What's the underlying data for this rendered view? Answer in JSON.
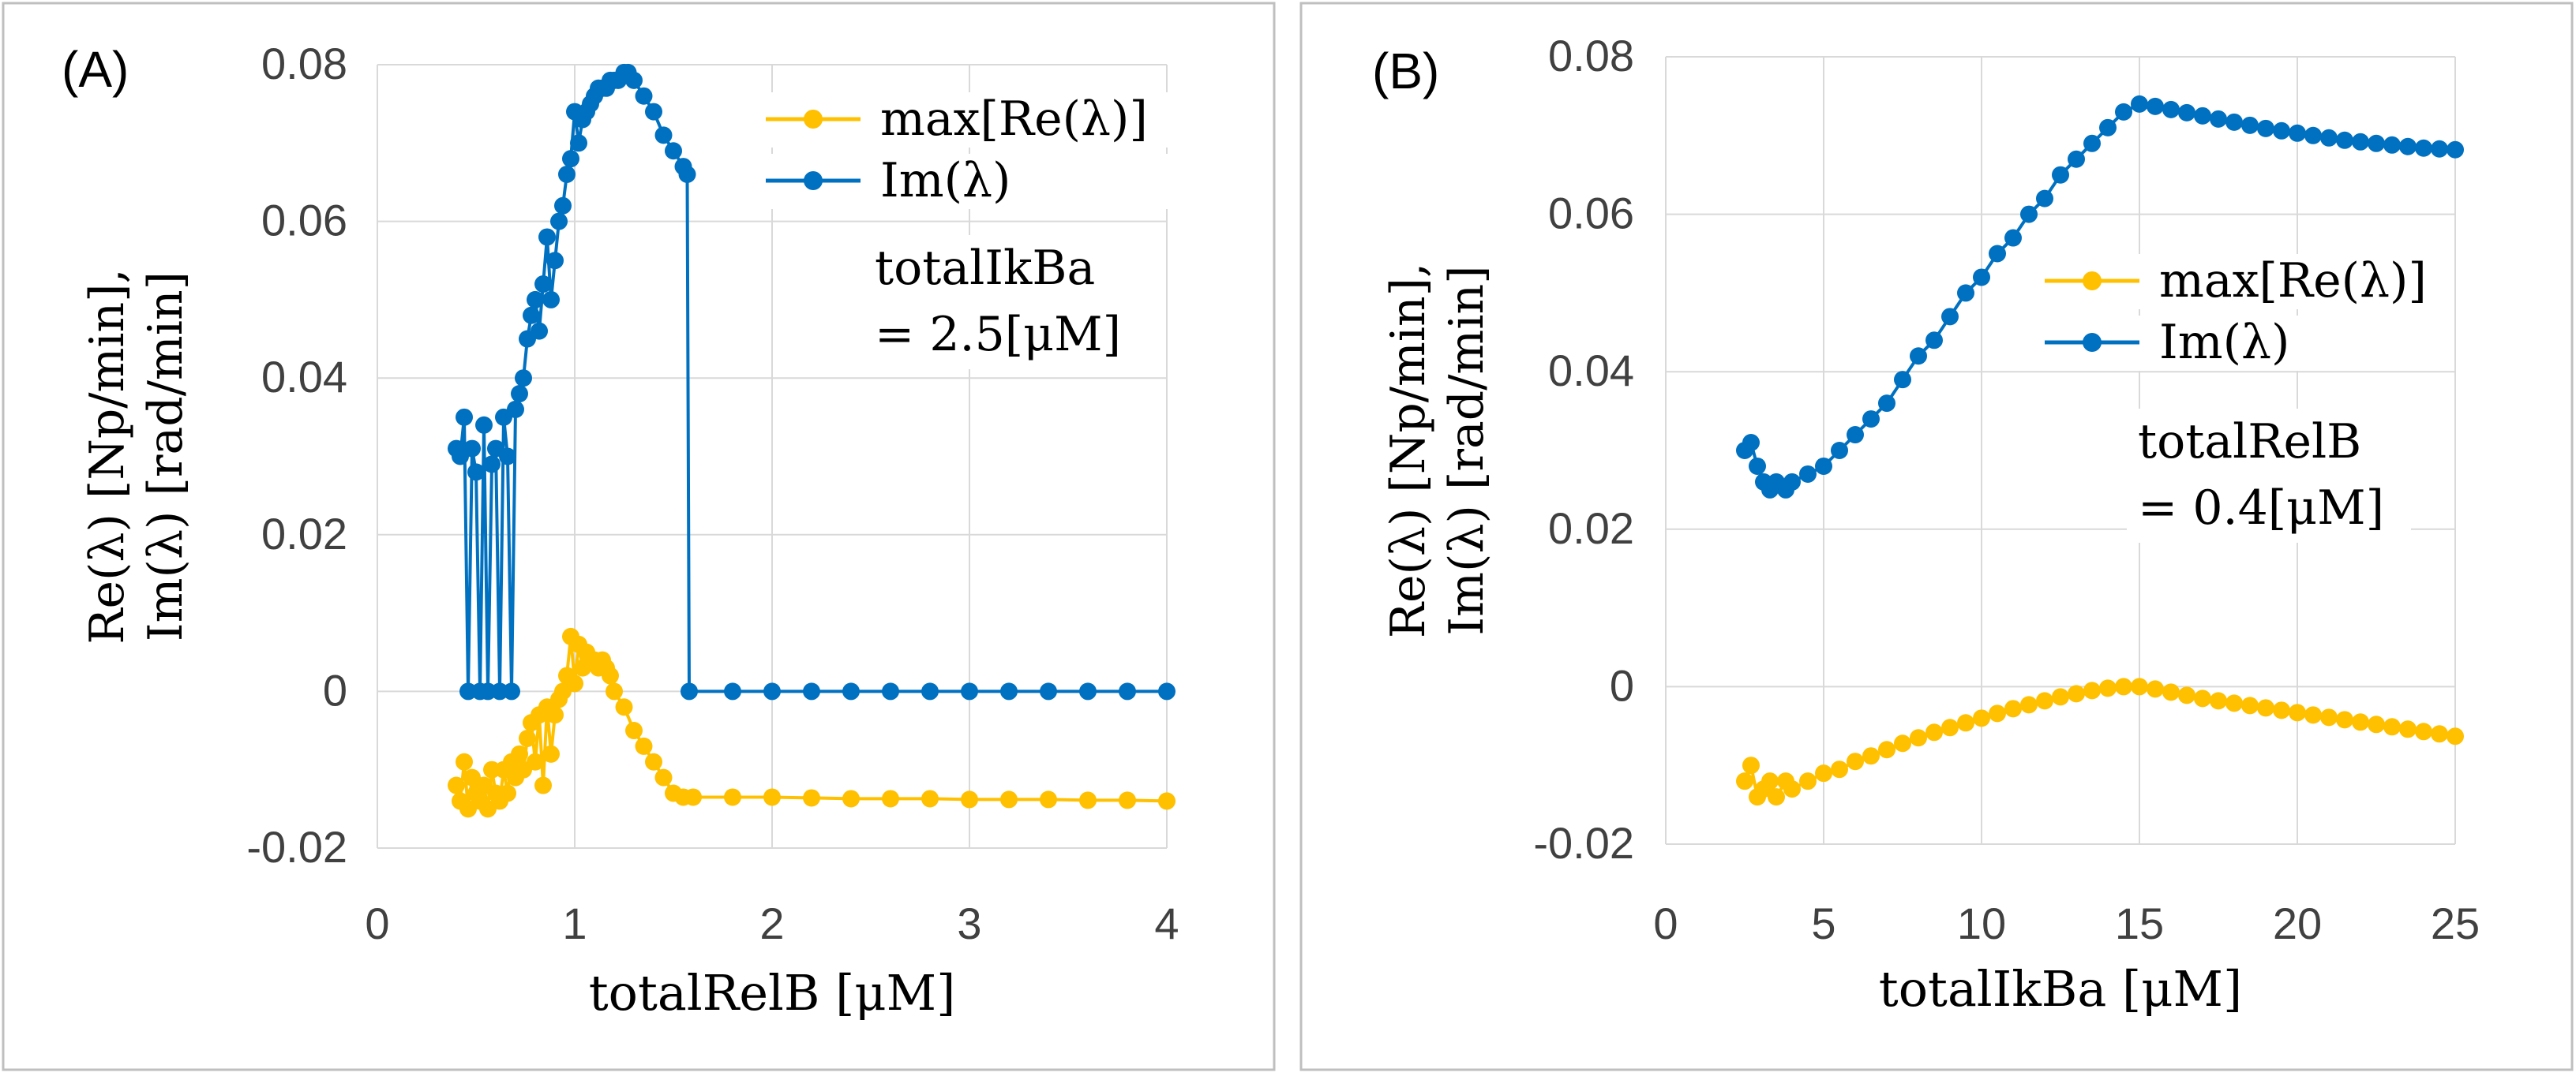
{
  "colors": {
    "re": "#FFC000",
    "im": "#0070C0",
    "grid": "#d9d9d9",
    "frame": "#bfbfbf",
    "text": "#404040"
  },
  "chart_data": [
    {
      "type": "line",
      "panel_label": "(A)",
      "xlabel": "totalRelB  [μM]",
      "ylabel_line1": "Re(λ)  [Np/min],",
      "ylabel_line2": "Im(λ)  [rad/min]",
      "xlim": [
        0,
        4
      ],
      "ylim": [
        -0.02,
        0.08
      ],
      "xticks": [
        0,
        1,
        2,
        3,
        4
      ],
      "yticks": [
        -0.02,
        0,
        0.02,
        0.04,
        0.06,
        0.08
      ],
      "xtick_labels": [
        "0",
        "1",
        "2",
        "3",
        "4"
      ],
      "ytick_labels": [
        "-0.02",
        "0",
        "0.02",
        "0.04",
        "0.06",
        "0.08"
      ],
      "legend": [
        "max[Re(λ)]",
        "Im(λ)"
      ],
      "legend_position": "top-right",
      "annotation_line1": "totalIkBa",
      "annotation_line2": "= 2.5[μM]",
      "series": [
        {
          "name": "max[Re(λ)]",
          "color": "#FFC000",
          "x": [
            0.4,
            0.42,
            0.44,
            0.46,
            0.48,
            0.5,
            0.52,
            0.54,
            0.56,
            0.58,
            0.6,
            0.62,
            0.64,
            0.66,
            0.68,
            0.7,
            0.72,
            0.74,
            0.76,
            0.78,
            0.8,
            0.82,
            0.84,
            0.86,
            0.88,
            0.9,
            0.92,
            0.94,
            0.96,
            0.98,
            1.0,
            1.02,
            1.04,
            1.06,
            1.08,
            1.1,
            1.12,
            1.14,
            1.16,
            1.18,
            1.2,
            1.25,
            1.3,
            1.35,
            1.4,
            1.45,
            1.5,
            1.55,
            1.6,
            1.8,
            2.0,
            2.2,
            2.4,
            2.6,
            2.8,
            3.0,
            3.2,
            3.4,
            3.6,
            3.8,
            4.0
          ],
          "y": [
            -0.012,
            -0.014,
            -0.009,
            -0.015,
            -0.011,
            -0.013,
            -0.014,
            -0.012,
            -0.015,
            -0.01,
            -0.013,
            -0.014,
            -0.01,
            -0.013,
            -0.009,
            -0.011,
            -0.008,
            -0.01,
            -0.006,
            -0.004,
            -0.009,
            -0.003,
            -0.012,
            -0.002,
            -0.008,
            -0.003,
            -0.001,
            0.0,
            0.002,
            0.007,
            0.001,
            0.006,
            0.003,
            0.005,
            0.004,
            0.004,
            0.003,
            0.004,
            0.003,
            0.002,
            0.0,
            -0.002,
            -0.005,
            -0.007,
            -0.009,
            -0.011,
            -0.013,
            -0.0135,
            -0.0135,
            -0.0135,
            -0.0135,
            -0.0136,
            -0.0137,
            -0.0137,
            -0.0137,
            -0.0138,
            -0.0138,
            -0.0138,
            -0.0139,
            -0.0139,
            -0.014
          ]
        },
        {
          "name": "Im(λ)",
          "color": "#0070C0",
          "x": [
            0.4,
            0.42,
            0.44,
            0.46,
            0.48,
            0.5,
            0.52,
            0.54,
            0.56,
            0.58,
            0.6,
            0.62,
            0.64,
            0.66,
            0.68,
            0.7,
            0.72,
            0.74,
            0.76,
            0.78,
            0.8,
            0.82,
            0.84,
            0.86,
            0.88,
            0.9,
            0.92,
            0.94,
            0.96,
            0.98,
            1.0,
            1.02,
            1.04,
            1.06,
            1.08,
            1.1,
            1.12,
            1.14,
            1.16,
            1.18,
            1.2,
            1.22,
            1.25,
            1.27,
            1.3,
            1.35,
            1.4,
            1.45,
            1.5,
            1.55,
            1.57,
            1.58,
            1.8,
            2.0,
            2.2,
            2.4,
            2.6,
            2.8,
            3.0,
            3.2,
            3.4,
            3.6,
            3.8,
            4.0
          ],
          "y": [
            0.031,
            0.03,
            0.035,
            0.0,
            0.031,
            0.028,
            0.0,
            0.034,
            0.0,
            0.029,
            0.031,
            0.0,
            0.035,
            0.03,
            0.0,
            0.036,
            0.038,
            0.04,
            0.045,
            0.048,
            0.05,
            0.046,
            0.052,
            0.058,
            0.05,
            0.055,
            0.06,
            0.062,
            0.066,
            0.068,
            0.074,
            0.07,
            0.073,
            0.074,
            0.075,
            0.076,
            0.077,
            0.077,
            0.077,
            0.078,
            0.078,
            0.078,
            0.079,
            0.079,
            0.078,
            0.076,
            0.074,
            0.071,
            0.069,
            0.067,
            0.066,
            0.0,
            0.0,
            0.0,
            0.0,
            0.0,
            0.0,
            0.0,
            0.0,
            0.0,
            0.0,
            0.0,
            0.0,
            0.0
          ]
        }
      ]
    },
    {
      "type": "line",
      "panel_label": "(B)",
      "xlabel": "totalIkBa  [μM]",
      "ylabel_line1": "Re(λ)  [Np/min],",
      "ylabel_line2": "Im(λ)  [rad/min]",
      "xlim": [
        0,
        25
      ],
      "ylim": [
        -0.02,
        0.08
      ],
      "xticks": [
        0,
        5,
        10,
        15,
        20,
        25
      ],
      "yticks": [
        -0.02,
        0,
        0.02,
        0.04,
        0.06,
        0.08
      ],
      "xtick_labels": [
        "0",
        "5",
        "10",
        "15",
        "20",
        "25"
      ],
      "ytick_labels": [
        "-0.02",
        "0",
        "0.02",
        "0.04",
        "0.06",
        "0.08"
      ],
      "legend": [
        "max[Re(λ)]",
        "Im(λ)"
      ],
      "legend_position": "center-right",
      "annotation_line1": "totalRelB",
      "annotation_line2": "= 0.4[μM]",
      "series": [
        {
          "name": "max[Re(λ)]",
          "color": "#FFC000",
          "x": [
            2.5,
            2.7,
            2.9,
            3.1,
            3.3,
            3.5,
            3.8,
            4.0,
            4.5,
            5.0,
            5.5,
            6.0,
            6.5,
            7.0,
            7.5,
            8.0,
            8.5,
            9.0,
            9.5,
            10.0,
            10.5,
            11.0,
            11.5,
            12.0,
            12.5,
            13.0,
            13.5,
            14.0,
            14.5,
            15.0,
            15.5,
            16.0,
            16.5,
            17.0,
            17.5,
            18.0,
            18.5,
            19.0,
            19.5,
            20.0,
            20.5,
            21.0,
            21.5,
            22.0,
            22.5,
            23.0,
            23.5,
            24.0,
            24.5,
            25.0
          ],
          "y": [
            -0.012,
            -0.01,
            -0.014,
            -0.013,
            -0.012,
            -0.014,
            -0.012,
            -0.013,
            -0.012,
            -0.011,
            -0.0105,
            -0.0095,
            -0.0088,
            -0.008,
            -0.0072,
            -0.0065,
            -0.0058,
            -0.0052,
            -0.0046,
            -0.004,
            -0.0034,
            -0.0028,
            -0.0023,
            -0.0018,
            -0.0013,
            -0.0009,
            -0.0005,
            -0.0002,
            0.0,
            0.0,
            -0.0003,
            -0.0007,
            -0.0011,
            -0.0015,
            -0.0018,
            -0.0021,
            -0.0024,
            -0.0027,
            -0.003,
            -0.0033,
            -0.0036,
            -0.0039,
            -0.0042,
            -0.0045,
            -0.0048,
            -0.0051,
            -0.0054,
            -0.0057,
            -0.006,
            -0.0063
          ]
        },
        {
          "name": "Im(λ)",
          "color": "#0070C0",
          "x": [
            2.5,
            2.7,
            2.9,
            3.1,
            3.3,
            3.5,
            3.8,
            4.0,
            4.5,
            5.0,
            5.5,
            6.0,
            6.5,
            7.0,
            7.5,
            8.0,
            8.5,
            9.0,
            9.5,
            10.0,
            10.5,
            11.0,
            11.5,
            12.0,
            12.5,
            13.0,
            13.5,
            14.0,
            14.5,
            15.0,
            15.5,
            16.0,
            16.5,
            17.0,
            17.5,
            18.0,
            18.5,
            19.0,
            19.5,
            20.0,
            20.5,
            21.0,
            21.5,
            22.0,
            22.5,
            23.0,
            23.5,
            24.0,
            24.5,
            25.0
          ],
          "y": [
            0.03,
            0.031,
            0.028,
            0.026,
            0.025,
            0.026,
            0.025,
            0.026,
            0.027,
            0.028,
            0.03,
            0.032,
            0.034,
            0.036,
            0.039,
            0.042,
            0.044,
            0.047,
            0.05,
            0.052,
            0.055,
            0.057,
            0.06,
            0.062,
            0.065,
            0.067,
            0.069,
            0.071,
            0.073,
            0.074,
            0.0737,
            0.0733,
            0.0729,
            0.0725,
            0.0721,
            0.0717,
            0.0713,
            0.0709,
            0.0706,
            0.0703,
            0.07,
            0.0697,
            0.0694,
            0.0692,
            0.069,
            0.0688,
            0.0686,
            0.0684,
            0.0683,
            0.0682
          ]
        }
      ]
    }
  ]
}
